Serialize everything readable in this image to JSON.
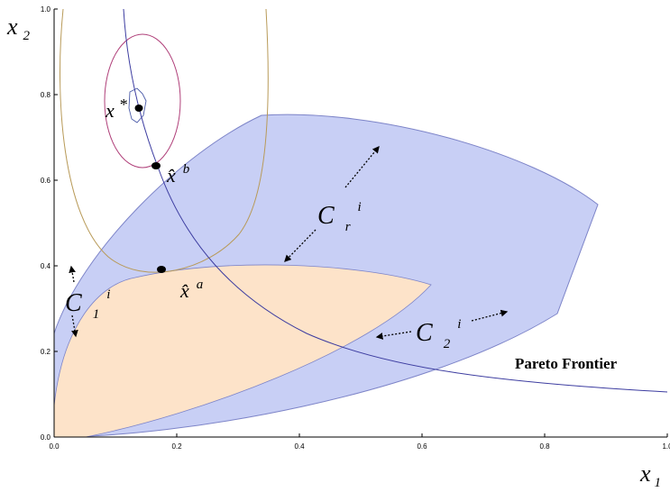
{
  "axes": {
    "x_tick_labels": [
      "0.0",
      "0.2",
      "0.4",
      "0.6",
      "0.8",
      "1.0"
    ],
    "y_tick_labels": [
      "0.0",
      "0.2",
      "0.4",
      "0.6",
      "0.8",
      "1.0"
    ],
    "x_label": {
      "base": "x",
      "sub": "1"
    },
    "y_label": {
      "base": "x",
      "sub": "2"
    }
  },
  "labels": {
    "x_star": {
      "base": "x",
      "sup": "*"
    },
    "x_hat_b": {
      "base": "x̂",
      "sup": "b"
    },
    "x_hat_a": {
      "base": "x̂",
      "sup": "a"
    },
    "c_r": {
      "base": "C",
      "sub": "r",
      "sup": "i"
    },
    "c_1": {
      "base": "C",
      "sub": "1",
      "sup": "i"
    },
    "c_2": {
      "base": "C",
      "sub": "2",
      "sup": "i"
    },
    "pareto": "Pareto Frontier"
  },
  "colors": {
    "region_outer": "#c8cff5",
    "region_inner": "#fde3c9",
    "region_edge": "#7d84c8",
    "pareto_curve": "#3c3ca0",
    "contour_small": "#4a5aa8",
    "contour_mid": "#b0407a",
    "contour_large": "#b89a58"
  }
}
